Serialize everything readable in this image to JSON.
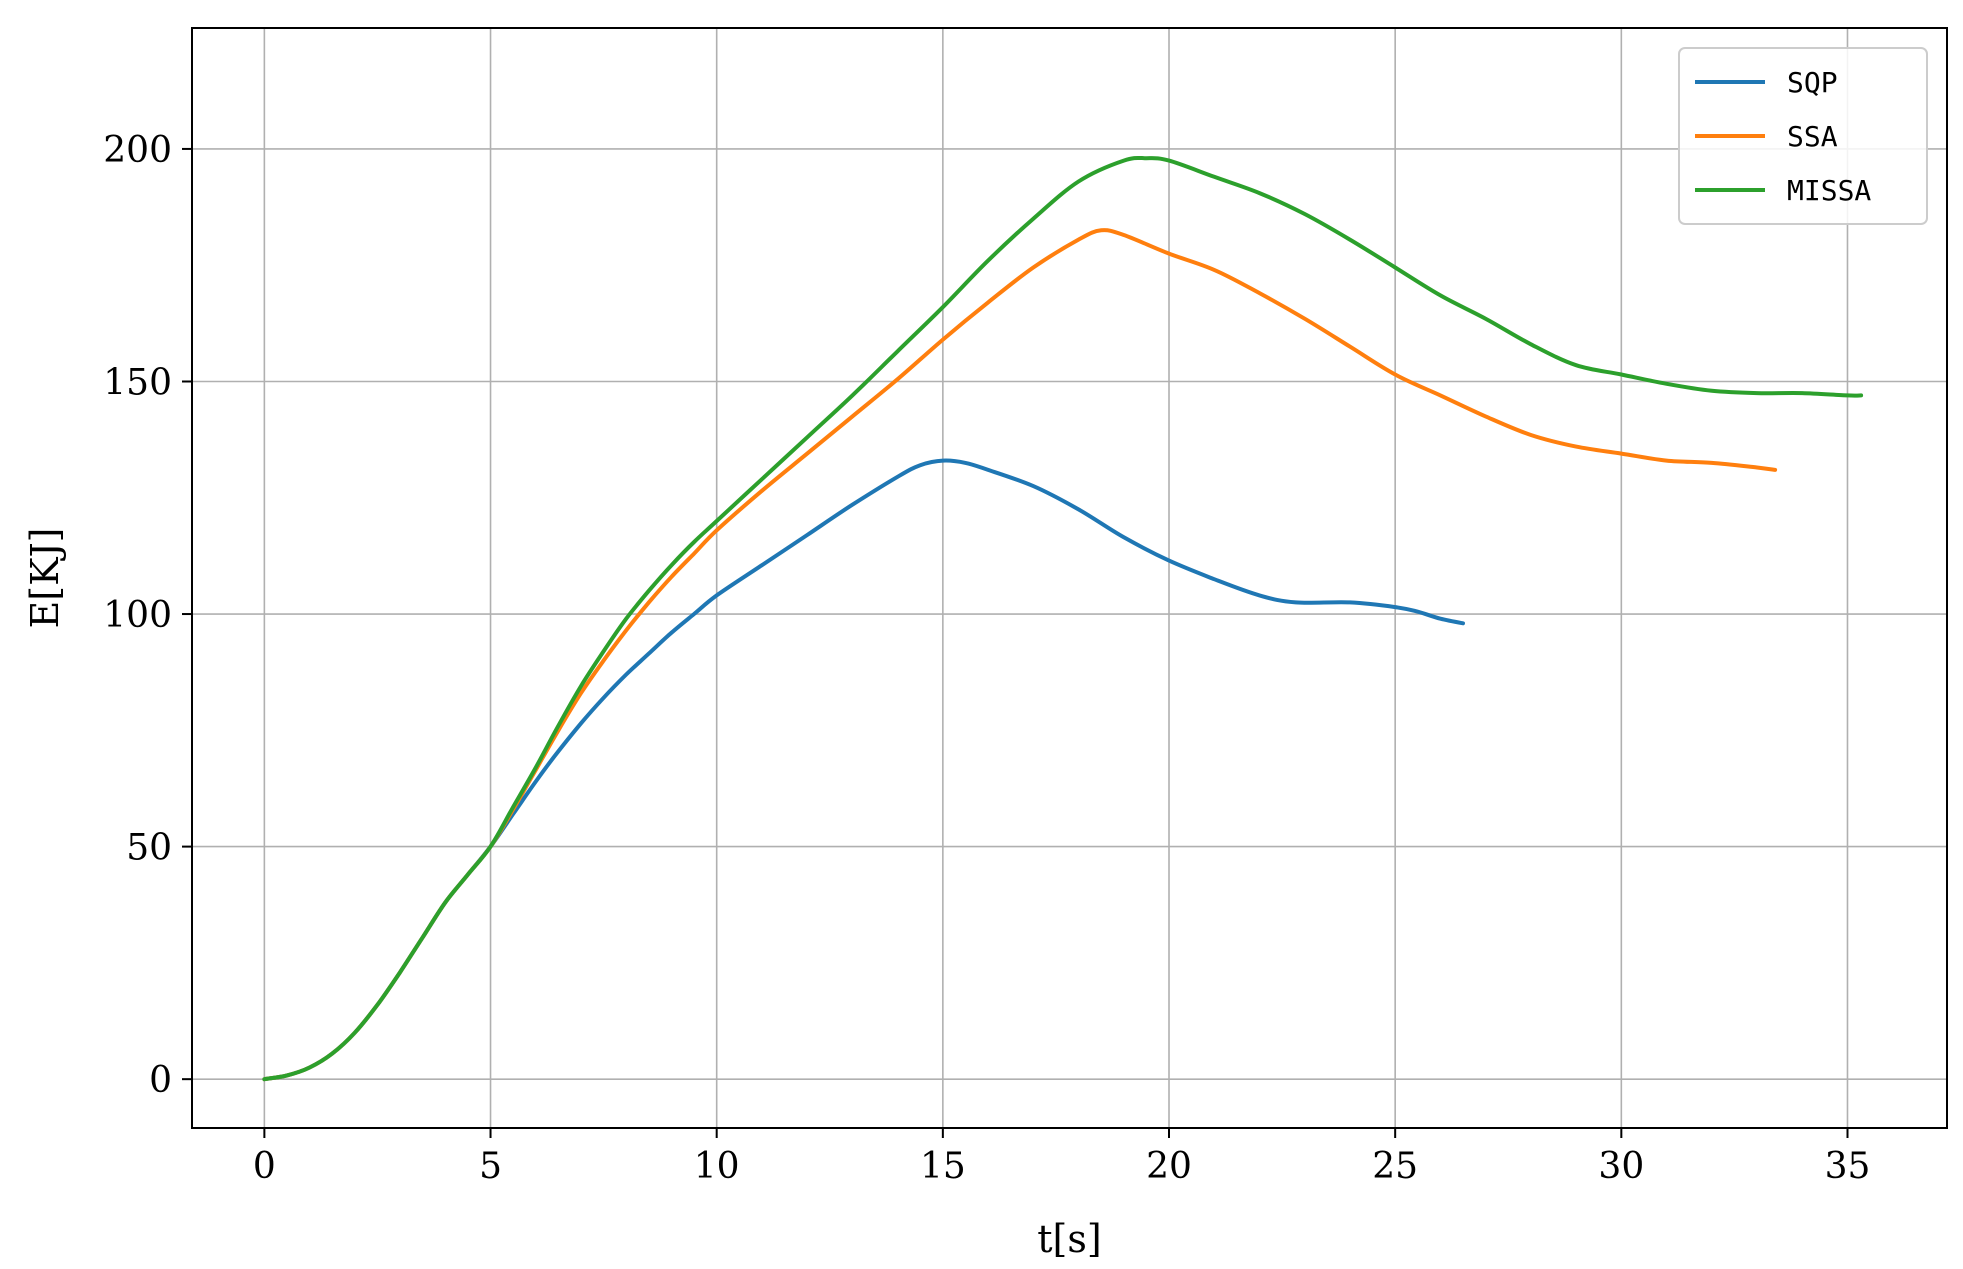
{
  "chart_data": {
    "type": "line",
    "xlabel": "t[s]",
    "ylabel": "E[KJ]",
    "xlim": [
      -1.6,
      37.2
    ],
    "ylim": [
      -10.5,
      226
    ],
    "xticks": [
      0,
      5,
      10,
      15,
      20,
      25,
      30,
      35
    ],
    "yticks": [
      0,
      50,
      100,
      150,
      200
    ],
    "grid": true,
    "legend_position": "top-right",
    "series": [
      {
        "name": "SQP",
        "color": "#1f77b4",
        "x": [
          0,
          0.5,
          1,
          1.5,
          2,
          2.5,
          3,
          3.5,
          4,
          4.5,
          5,
          5.5,
          6,
          6.5,
          7,
          7.5,
          8,
          8.5,
          9,
          9.5,
          10,
          11,
          12,
          13,
          14,
          14.5,
          15,
          15.5,
          16,
          17,
          18,
          19,
          20,
          21,
          22,
          22.8,
          24,
          25,
          25.5,
          26,
          26.5
        ],
        "y": [
          0,
          0.8,
          2.5,
          5.5,
          10,
          16,
          23,
          30.5,
          38,
          44,
          50,
          57,
          64,
          70.5,
          76.5,
          82,
          87,
          91.5,
          96,
          100,
          104,
          110.5,
          117,
          123.5,
          129.5,
          132,
          133,
          132.5,
          131,
          127.5,
          122.5,
          116.5,
          111.5,
          107.5,
          104,
          102.5,
          102.5,
          101.5,
          100.5,
          99,
          98
        ]
      },
      {
        "name": "SSA",
        "color": "#ff7f0e",
        "x": [
          0,
          0.5,
          1,
          1.5,
          2,
          2.5,
          3,
          3.5,
          4,
          4.5,
          5,
          5.5,
          6,
          6.5,
          7,
          7.5,
          8,
          8.5,
          9,
          9.5,
          10,
          11,
          12,
          13,
          14,
          15,
          16,
          17,
          18,
          18.5,
          19,
          20,
          21,
          22,
          23,
          24,
          25,
          26,
          27,
          28,
          29,
          30,
          31,
          32,
          33,
          33.4
        ],
        "y": [
          0,
          0.8,
          2.5,
          5.5,
          10,
          16,
          23,
          30.5,
          38,
          44,
          50,
          58,
          66.5,
          75,
          83,
          90,
          96.5,
          102.5,
          108,
          113,
          118,
          126.5,
          134.5,
          142.5,
          150.5,
          159,
          167,
          174.5,
          180.5,
          182.5,
          181.5,
          177.5,
          174,
          169,
          163.5,
          157.5,
          151.5,
          147,
          142.5,
          138.5,
          136,
          134.5,
          133,
          132.5,
          131.5,
          131
        ]
      },
      {
        "name": "MISSA",
        "color": "#2ca02c",
        "x": [
          0,
          0.5,
          1,
          1.5,
          2,
          2.5,
          3,
          3.5,
          4,
          4.5,
          5,
          5.5,
          6,
          6.5,
          7,
          7.5,
          8,
          8.5,
          9,
          9.5,
          10,
          11,
          12,
          13,
          14,
          15,
          16,
          17,
          18,
          19,
          19.5,
          20,
          21,
          22,
          23,
          24,
          25,
          26,
          27,
          28,
          29,
          30,
          31,
          32,
          33,
          34,
          35,
          35.3
        ],
        "y": [
          0,
          0.8,
          2.5,
          5.5,
          10,
          16,
          23,
          30.5,
          38,
          44,
          50,
          58.5,
          67,
          76,
          84.5,
          92,
          99,
          105,
          110.5,
          115.5,
          120,
          129,
          138,
          147,
          156.5,
          166,
          176,
          185,
          193,
          197.5,
          198,
          197.5,
          194,
          190.5,
          186,
          180.5,
          174.5,
          168.5,
          163.5,
          158,
          153.5,
          151.5,
          149.5,
          148,
          147.5,
          147.5,
          147,
          147
        ]
      }
    ]
  }
}
